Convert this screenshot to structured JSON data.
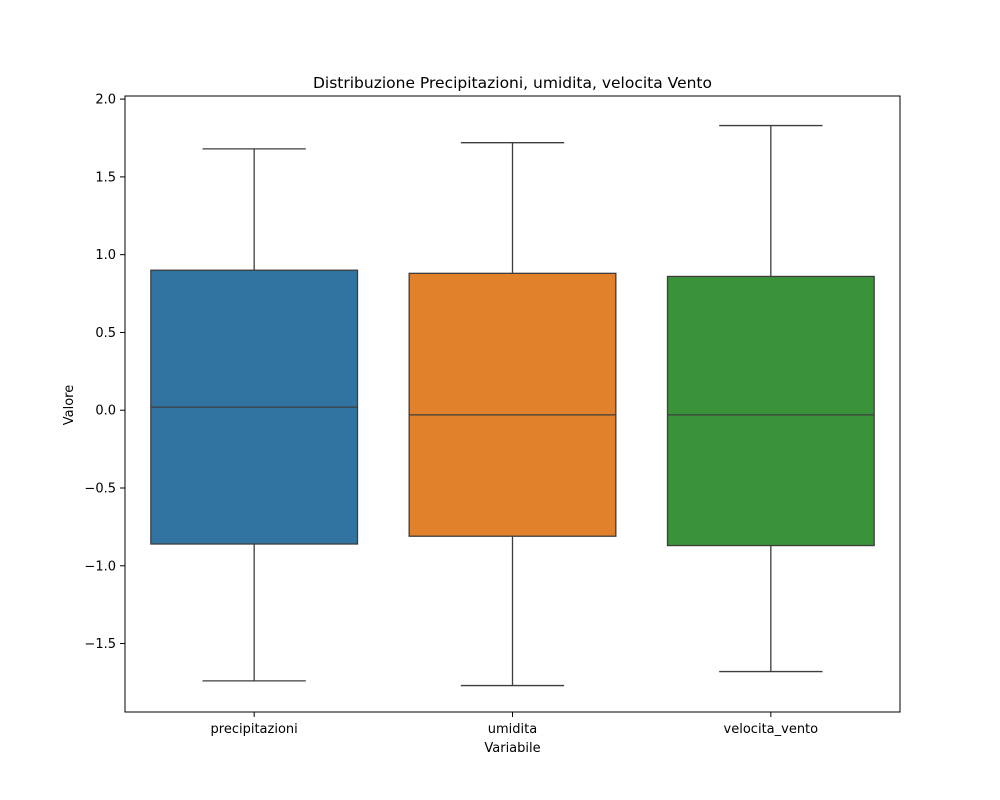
{
  "chart_data": {
    "type": "box",
    "title": "Distribuzione Precipitazioni, umidita, velocita Vento",
    "xlabel": "Variabile",
    "ylabel": "Valore",
    "ylim": [
      -1.94,
      2.02
    ],
    "yticks": [
      2.0,
      1.5,
      1.0,
      0.5,
      0.0,
      -0.5,
      -1.0,
      -1.5
    ],
    "ytick_labels": [
      "2.0",
      "1.5",
      "1.0",
      "0.5",
      "0.0",
      "−0.5",
      "−1.0",
      "−1.5"
    ],
    "grid": false,
    "legend": "none",
    "categories": [
      "precipitazioni",
      "umidita",
      "velocita_vento"
    ],
    "boxes": [
      {
        "category": "precipitazioni",
        "whisker_low": -1.74,
        "q1": -0.86,
        "median": 0.02,
        "q3": 0.9,
        "whisker_high": 1.68,
        "color": "#3274a1"
      },
      {
        "category": "umidita",
        "whisker_low": -1.77,
        "q1": -0.81,
        "median": -0.03,
        "q3": 0.88,
        "whisker_high": 1.72,
        "color": "#e1812c"
      },
      {
        "category": "velocita_vento",
        "whisker_low": -1.68,
        "q1": -0.87,
        "median": -0.03,
        "q3": 0.86,
        "whisker_high": 1.83,
        "color": "#3a923a"
      }
    ],
    "line_color": "#3d3d3d"
  }
}
